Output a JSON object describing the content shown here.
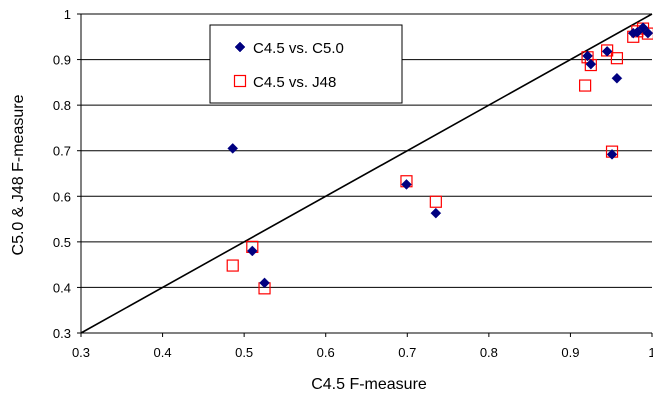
{
  "chart_data": {
    "type": "scatter",
    "xlabel": "C4.5 F-measure",
    "ylabel": "C5.0  & J48 F-measure",
    "xlim": [
      0.3,
      1.0
    ],
    "ylim": [
      0.3,
      1.0
    ],
    "xticks": [
      "0.3",
      "0.4",
      "0.5",
      "0.6",
      "0.7",
      "0.8",
      "0.9",
      "1"
    ],
    "yticks": [
      "0.3",
      "0.4",
      "0.5",
      "0.6",
      "0.7",
      "0.8",
      "0.9",
      "1"
    ],
    "grid": "horizontal",
    "reference_line": "y = x",
    "legend_position": "upper-left-center",
    "series": [
      {
        "name": "C4.5 vs. C5.0",
        "marker": "diamond",
        "color": "#000080",
        "points": [
          [
            0.486,
            0.705
          ],
          [
            0.51,
            0.48
          ],
          [
            0.525,
            0.41
          ],
          [
            0.699,
            0.626
          ],
          [
            0.735,
            0.563
          ],
          [
            0.921,
            0.908
          ],
          [
            0.925,
            0.89
          ],
          [
            0.945,
            0.918
          ],
          [
            0.951,
            0.692
          ],
          [
            0.957,
            0.859
          ],
          [
            0.977,
            0.958
          ],
          [
            0.982,
            0.96
          ],
          [
            0.989,
            0.97
          ],
          [
            0.995,
            0.958
          ]
        ]
      },
      {
        "name": "C4.5 vs. J48",
        "marker": "open-square",
        "color": "#ff0000",
        "points": [
          [
            0.486,
            0.448
          ],
          [
            0.51,
            0.489
          ],
          [
            0.525,
            0.398
          ],
          [
            0.699,
            0.633
          ],
          [
            0.735,
            0.588
          ],
          [
            0.918,
            0.843
          ],
          [
            0.921,
            0.905
          ],
          [
            0.925,
            0.888
          ],
          [
            0.945,
            0.92
          ],
          [
            0.951,
            0.698
          ],
          [
            0.957,
            0.903
          ],
          [
            0.977,
            0.95
          ],
          [
            0.982,
            0.962
          ],
          [
            0.989,
            0.968
          ],
          [
            0.995,
            0.957
          ]
        ]
      }
    ]
  }
}
